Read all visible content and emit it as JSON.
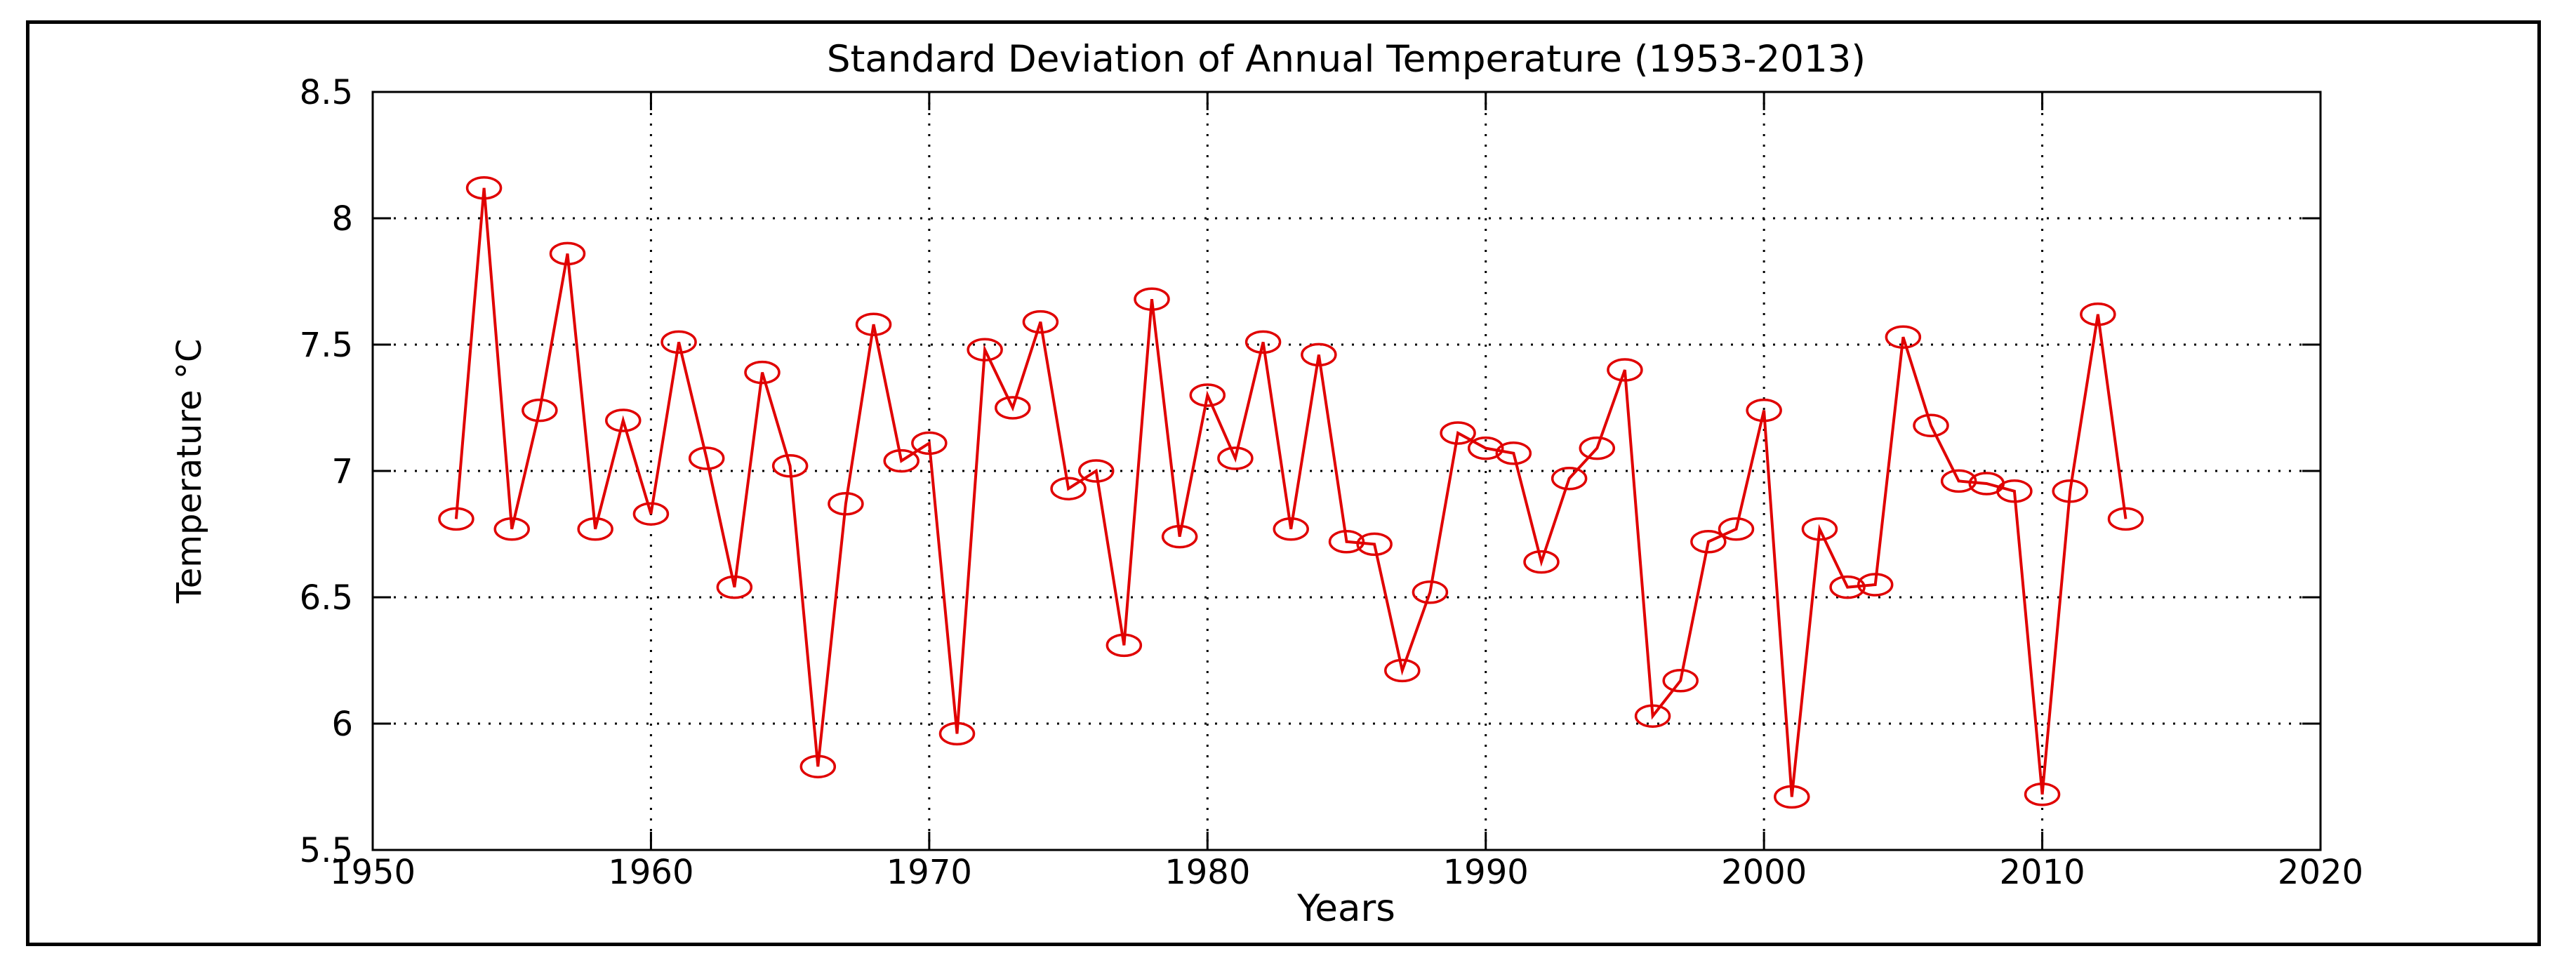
{
  "chart_data": {
    "type": "line",
    "title": "Standard Deviation of Annual Temperature (1953-2013)",
    "xlabel": "Years",
    "ylabel": "Temperature °C",
    "xlim": [
      1950,
      2020
    ],
    "ylim": [
      5.5,
      8.5
    ],
    "xticks": [
      1950,
      1960,
      1970,
      1980,
      1990,
      2000,
      2010,
      2020
    ],
    "yticks": [
      5.5,
      6,
      6.5,
      7,
      7.5,
      8,
      8.5
    ],
    "xtick_labels": [
      "1950",
      "1960",
      "1970",
      "1980",
      "1990",
      "2000",
      "2010",
      "2020"
    ],
    "ytick_labels": [
      "5.5",
      "6",
      "6.5",
      "7",
      "7.5",
      "8",
      "8.5"
    ],
    "grid": true,
    "series": [
      {
        "name": "Standard deviation",
        "color": "#e00000",
        "marker": "circle",
        "x": [
          1953,
          1954,
          1955,
          1956,
          1957,
          1958,
          1959,
          1960,
          1961,
          1962,
          1963,
          1964,
          1965,
          1966,
          1967,
          1968,
          1969,
          1970,
          1971,
          1972,
          1973,
          1974,
          1975,
          1976,
          1977,
          1978,
          1979,
          1980,
          1981,
          1982,
          1983,
          1984,
          1985,
          1986,
          1987,
          1988,
          1989,
          1990,
          1991,
          1992,
          1993,
          1994,
          1995,
          1996,
          1997,
          1998,
          1999,
          2000,
          2001,
          2002,
          2003,
          2004,
          2005,
          2006,
          2007,
          2008,
          2009,
          2010,
          2011,
          2012,
          2013
        ],
        "values": [
          6.81,
          8.12,
          6.77,
          7.24,
          7.86,
          6.77,
          7.2,
          6.83,
          7.51,
          7.05,
          6.54,
          7.39,
          7.02,
          5.83,
          6.87,
          7.58,
          7.04,
          7.11,
          5.96,
          7.48,
          7.25,
          7.59,
          6.93,
          7.0,
          6.31,
          7.68,
          6.74,
          7.3,
          7.05,
          7.51,
          6.77,
          7.46,
          6.72,
          6.71,
          6.21,
          6.52,
          7.15,
          7.09,
          7.07,
          6.64,
          6.97,
          7.09,
          7.4,
          6.03,
          6.17,
          6.72,
          6.77,
          7.24,
          5.71,
          6.77,
          6.54,
          6.55,
          7.53,
          7.18,
          6.96,
          6.95,
          6.92,
          5.72,
          6.92,
          7.62,
          6.81
        ]
      }
    ]
  }
}
